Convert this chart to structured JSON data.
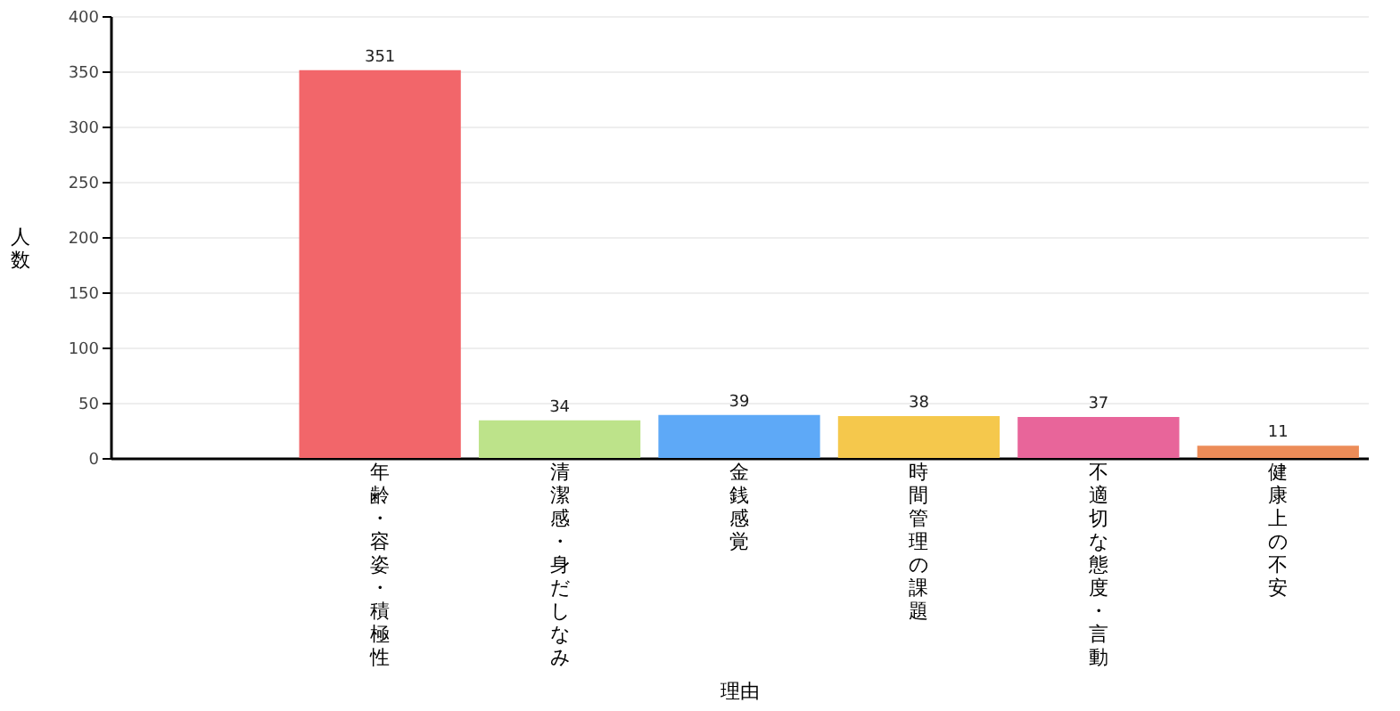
{
  "chart_data": {
    "type": "bar",
    "xlabel": "理由",
    "ylabel": "人数",
    "categories": [
      null,
      "年齢・容姿・積極性",
      "清潔感・身だしなみ",
      "金銭感覚",
      "時間管理の課題",
      "不適切な態度・言動",
      "健康上の不安"
    ],
    "values": [
      null,
      351,
      34,
      39,
      38,
      37,
      11
    ],
    "colors": [
      "#cccccc",
      "#f2666a",
      "#bde38a",
      "#5ea9f7",
      "#f5c84c",
      "#e8659a",
      "#ec8c58"
    ],
    "ylim": [
      0,
      400
    ],
    "yticks": [
      0,
      50,
      100,
      150,
      200,
      250,
      300,
      350,
      400
    ],
    "grid": "y",
    "data_labels": true
  }
}
